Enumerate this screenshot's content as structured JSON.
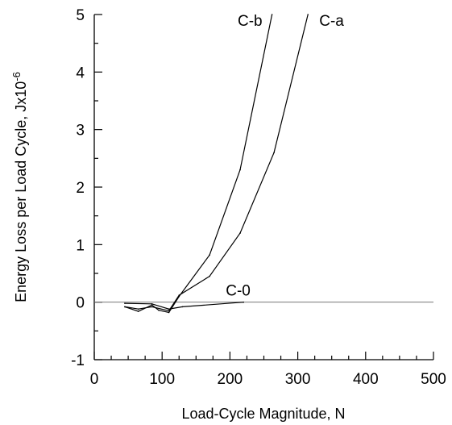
{
  "chart_data": {
    "type": "line",
    "title": "",
    "xlabel": "Load-Cycle Magnitude, N",
    "ylabel_main": "Energy Loss per Load Cycle, Jx10",
    "ylabel_exponent": "-6",
    "xlim": [
      0,
      500
    ],
    "ylim": [
      -1,
      5
    ],
    "x_ticks": [
      0,
      100,
      200,
      300,
      400,
      500
    ],
    "y_ticks": [
      -1,
      0,
      1,
      2,
      3,
      4,
      5
    ],
    "x_minor_step": 25,
    "y_minor_step": 0.5,
    "zero_line": true,
    "grid": false,
    "legend": "none",
    "series": [
      {
        "name": "C-b",
        "x": [
          45,
          65,
          85,
          95,
          110,
          125,
          170,
          215,
          262
        ],
        "y": [
          -0.08,
          -0.16,
          -0.05,
          -0.14,
          -0.18,
          0.1,
          0.82,
          2.3,
          5.0
        ]
      },
      {
        "name": "C-a",
        "x": [
          45,
          65,
          85,
          110,
          125,
          170,
          215,
          265,
          315
        ],
        "y": [
          -0.08,
          -0.12,
          -0.08,
          -0.15,
          0.12,
          0.45,
          1.2,
          2.6,
          5.0
        ]
      },
      {
        "name": "C-0",
        "x": [
          45,
          85,
          110,
          130,
          220
        ],
        "y": [
          -0.02,
          -0.03,
          -0.12,
          -0.08,
          0.0
        ]
      }
    ],
    "series_labels": [
      "C-b",
      "C-a",
      "C-0"
    ]
  }
}
